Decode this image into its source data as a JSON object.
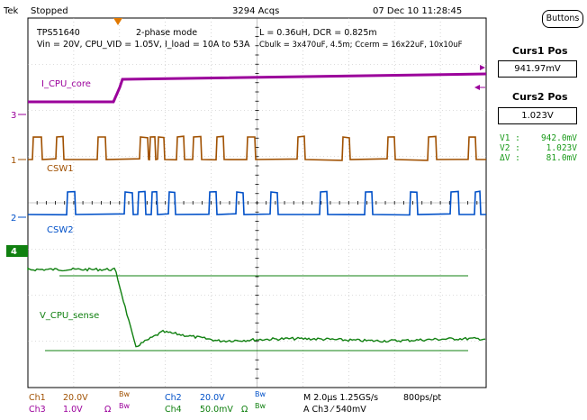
{
  "header": {
    "brand": "Tek",
    "run_state": "Stopped",
    "acquisitions": "3294 Acqs",
    "datetime": "07 Dec 10 11:28:45"
  },
  "buttons_label": "Buttons",
  "annotations": {
    "part": "TPS51640",
    "mode": "2-phase mode",
    "conditions": "Vin = 20V, CPU_VID = 1.05V, I_load = 10A to 53A",
    "inductor": "L = 0.36uH, DCR = 0.825m",
    "caps": "Cbulk = 3x470uF, 4.5m;   Ccerm = 16x22uF, 10x10uF"
  },
  "trace_labels": {
    "i_cpu_core": "I_CPU_core",
    "csw1": "CSW1",
    "csw2": "CSW2",
    "v_cpu_sense": "V_CPU_sense"
  },
  "channel_markers": {
    "ch3": "3",
    "ch1": "1",
    "ch2": "2",
    "ch4": "4"
  },
  "cursors": {
    "curs1_title": "Curs1 Pos",
    "curs1_value": "941.97mV",
    "curs2_title": "Curs2 Pos",
    "curs2_value": "1.023V",
    "v1_label": "V1 :",
    "v1_value": "942.0mV",
    "v2_label": "V2 :",
    "v2_value": "1.023V",
    "dv_label": "ΔV :",
    "dv_value": "81.0mV"
  },
  "settings": {
    "ch1": {
      "name": "Ch1",
      "scale": "20.0V",
      "bw": "Bw"
    },
    "ch3": {
      "name": "Ch3",
      "scale": "1.0V",
      "ohm": "Ω",
      "bw": "Bw"
    },
    "ch2": {
      "name": "Ch2",
      "scale": "20.0V",
      "bw": "Bw"
    },
    "ch4": {
      "name": "Ch4",
      "scale": "50.0mV",
      "ohm": "Ω",
      "bw": "Bw"
    },
    "timebase": "M 2.0µs 1.25GS/s",
    "record": "800ps/pt",
    "trigger": "A  Ch3  ⁄  540mV"
  },
  "colors": {
    "ch1": "#a05000",
    "ch2": "#0050c8",
    "ch3": "#9b009b",
    "ch4": "#108010",
    "trigger_marker": "#e07800"
  }
}
